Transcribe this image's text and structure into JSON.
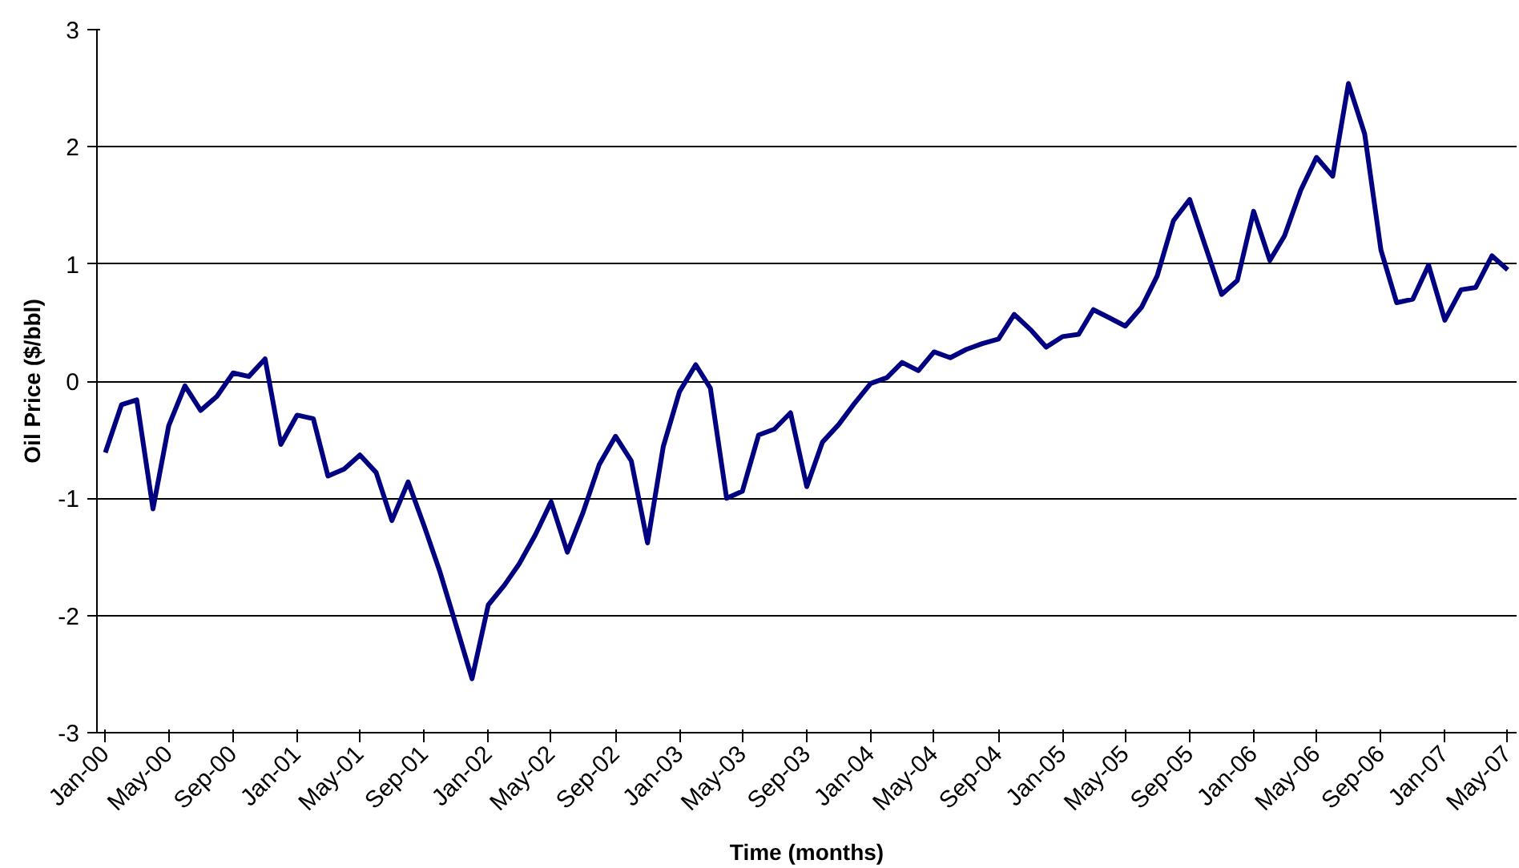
{
  "chart_data": {
    "type": "line",
    "xlabel": "Time (months)",
    "ylabel": "Oil Price ($/bbl)",
    "x": [
      "2000-01",
      "2000-02",
      "2000-03",
      "2000-04",
      "2000-05",
      "2000-06",
      "2000-07",
      "2000-08",
      "2000-09",
      "2000-10",
      "2000-11",
      "2000-12",
      "2001-01",
      "2001-02",
      "2001-03",
      "2001-04",
      "2001-05",
      "2001-06",
      "2001-07",
      "2001-08",
      "2001-09",
      "2001-10",
      "2001-11",
      "2001-12",
      "2002-01",
      "2002-02",
      "2002-03",
      "2002-04",
      "2002-05",
      "2002-06",
      "2002-07",
      "2002-08",
      "2002-09",
      "2002-10",
      "2002-11",
      "2002-12",
      "2003-01",
      "2003-02",
      "2003-03",
      "2003-04",
      "2003-05",
      "2003-06",
      "2003-07",
      "2003-08",
      "2003-09",
      "2003-10",
      "2003-11",
      "2003-12",
      "2004-01",
      "2004-02",
      "2004-03",
      "2004-04",
      "2004-05",
      "2004-06",
      "2004-07",
      "2004-08",
      "2004-09",
      "2004-10",
      "2004-11",
      "2004-12",
      "2005-01",
      "2005-02",
      "2005-03",
      "2005-04",
      "2005-05",
      "2005-06",
      "2005-07",
      "2005-08",
      "2005-09",
      "2005-10",
      "2005-11",
      "2005-12",
      "2006-01",
      "2006-02",
      "2006-03",
      "2006-04",
      "2006-05",
      "2006-06",
      "2006-07",
      "2006-08",
      "2006-09",
      "2006-10",
      "2006-11",
      "2006-12",
      "2007-01",
      "2007-02",
      "2007-03",
      "2007-04",
      "2007-05"
    ],
    "series": [
      {
        "color": "#000080",
        "values": [
          -0.61,
          -0.2,
          -0.16,
          -1.09,
          -0.38,
          -0.04,
          -0.25,
          -0.13,
          0.07,
          0.04,
          0.19,
          -0.54,
          -0.29,
          -0.32,
          -0.81,
          -0.75,
          -0.63,
          -0.78,
          -1.19,
          -0.86,
          -1.24,
          -1.63,
          -2.09,
          -2.54,
          -1.91,
          -1.74,
          -1.56,
          -1.31,
          -1.03,
          -1.46,
          -1.12,
          -0.71,
          -0.47,
          -0.68,
          -1.38,
          -0.56,
          -0.09,
          0.14,
          -0.06,
          -1.0,
          -0.94,
          -0.46,
          -0.41,
          -0.27,
          -0.9,
          -0.52,
          -0.37,
          -0.19,
          -0.02,
          0.03,
          0.16,
          0.09,
          0.25,
          0.2,
          0.27,
          0.32,
          0.36,
          0.57,
          0.44,
          0.29,
          0.38,
          0.4,
          0.61,
          0.54,
          0.47,
          0.63,
          0.9,
          1.37,
          1.55,
          1.15,
          0.74,
          0.86,
          1.45,
          1.03,
          1.24,
          1.63,
          1.91,
          1.75,
          2.54,
          2.11,
          1.12,
          0.67,
          0.7,
          0.99,
          0.52,
          0.78,
          0.8,
          1.07,
          0.95
        ]
      }
    ],
    "xlim": [
      "1999-12-16",
      "2007-05-18"
    ],
    "xticks": [
      {
        "value": "2000-01",
        "label": "Jan-00"
      },
      {
        "value": "2000-05",
        "label": "May-00"
      },
      {
        "value": "2000-09",
        "label": "Sep-00"
      },
      {
        "value": "2001-01",
        "label": "Jan-01"
      },
      {
        "value": "2001-05",
        "label": "May-01"
      },
      {
        "value": "2001-09",
        "label": "Sep-01"
      },
      {
        "value": "2002-01",
        "label": "Jan-02"
      },
      {
        "value": "2002-05",
        "label": "May-02"
      },
      {
        "value": "2002-09",
        "label": "Sep-02"
      },
      {
        "value": "2003-01",
        "label": "Jan-03"
      },
      {
        "value": "2003-05",
        "label": "May-03"
      },
      {
        "value": "2003-09",
        "label": "Sep-03"
      },
      {
        "value": "2004-01",
        "label": "Jan-04"
      },
      {
        "value": "2004-05",
        "label": "May-04"
      },
      {
        "value": "2004-09",
        "label": "Sep-04"
      },
      {
        "value": "2005-01",
        "label": "Jan-05"
      },
      {
        "value": "2005-05",
        "label": "May-05"
      },
      {
        "value": "2005-09",
        "label": "Sep-05"
      },
      {
        "value": "2006-01",
        "label": "Jan-06"
      },
      {
        "value": "2006-05",
        "label": "May-06"
      },
      {
        "value": "2006-09",
        "label": "Sep-06"
      },
      {
        "value": "2007-01",
        "label": "Jan-07"
      },
      {
        "value": "2007-05",
        "label": "May-07"
      }
    ],
    "ylim": [
      -3,
      3
    ],
    "yticks": [
      -3,
      -2,
      -1,
      0,
      1,
      2,
      3
    ],
    "grid": "y",
    "marker": "none",
    "line_style": "solid"
  }
}
